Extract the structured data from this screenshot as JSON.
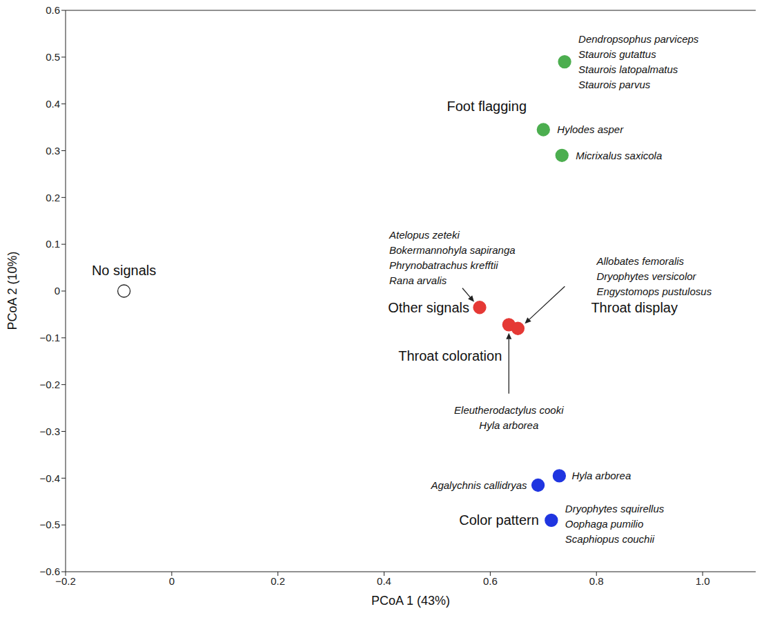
{
  "chart_data": {
    "type": "scatter",
    "x_label": "PCoA 1 (43%)",
    "y_label": "PCoA 2 (10%)",
    "xlim": [
      -0.2,
      1.1
    ],
    "xticks": [
      {
        "value": -0.2,
        "label": "−0.2"
      },
      0,
      0.2,
      0.4,
      0.6,
      0.8,
      {
        "value": 1.0,
        "label": "1.0"
      }
    ],
    "ylim": [
      -0.6,
      0.6
    ],
    "yticks": [
      {
        "value": -0.6,
        "label": "−0.6"
      },
      {
        "value": -0.5,
        "label": "−0.5"
      },
      {
        "value": -0.4,
        "label": "−0.4"
      },
      {
        "value": -0.3,
        "label": "−0.3"
      },
      {
        "value": -0.2,
        "label": "−0.2"
      },
      {
        "value": -0.1,
        "label": "−0.1"
      },
      0,
      0.1,
      0.2,
      0.3,
      0.4,
      0.5,
      0.6
    ],
    "grid": false,
    "marker": "circle",
    "series": [
      {
        "color": "#ffffff",
        "x": [
          -0.09
        ],
        "y": [
          0
        ],
        "labels": [
          "No signals"
        ],
        "species": [
          []
        ]
      },
      {
        "color": "#4cae4f",
        "x": [
          0.74,
          0.7,
          0.735
        ],
        "y": [
          0.49,
          0.345,
          0.29
        ],
        "labels": [
          "Foot flagging",
          null,
          null
        ],
        "species": [
          [
            "Dendropsophus parviceps",
            "Staurois gutattus",
            "Staurois latopalmatus",
            "Staurois parvus"
          ],
          [
            "Hylodes asper"
          ],
          [
            "Micrixalus saxicola"
          ]
        ]
      },
      {
        "color": "#e53935",
        "x": [
          0.58,
          0.635,
          0.652
        ],
        "y": [
          -0.035,
          -0.072,
          -0.08
        ],
        "labels": [
          "Other signals",
          "Throat coloration",
          "Throat display"
        ],
        "species": [
          [
            "Atelopus zeteki",
            "Bokermannohyla sapiranga",
            "Phrynobatrachus krefftii",
            "Rana arvalis"
          ],
          [
            "Eleutherodactylus cooki",
            "Hyla arborea"
          ],
          [
            "Allobates femoralis",
            "Dryophytes versicolor",
            "Engystomops pustulosus"
          ]
        ]
      },
      {
        "color": "#1f35e0",
        "x": [
          0.69,
          0.73,
          0.715
        ],
        "y": [
          -0.415,
          -0.395,
          -0.49
        ],
        "labels": [
          null,
          null,
          "Color pattern"
        ],
        "species": [
          [
            "Agalychnis callidryas"
          ],
          [
            "Hyla arborea"
          ],
          [
            "Dryophytes squirellus",
            "Oophaga pumilio",
            "Scaphiopus couchii"
          ]
        ]
      }
    ]
  }
}
